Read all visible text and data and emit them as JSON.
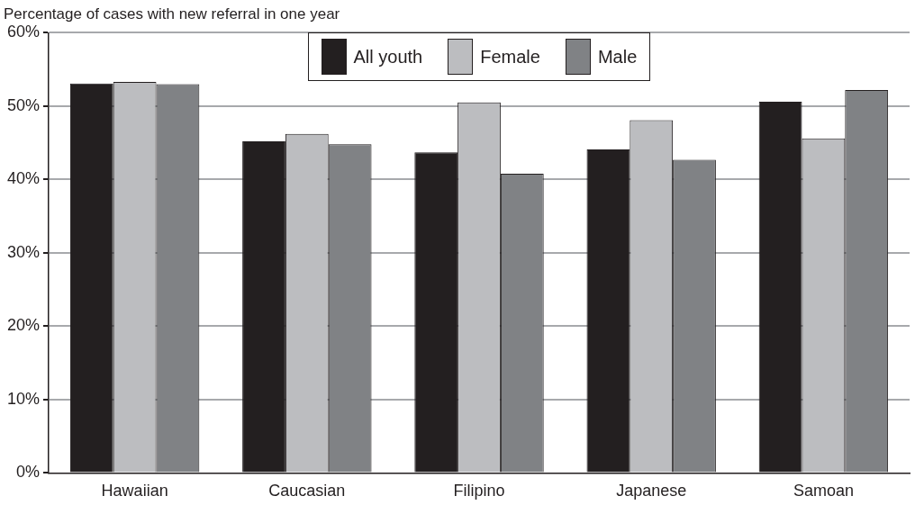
{
  "chart_data": {
    "type": "bar",
    "title": "Percentage of cases with new referral in one year",
    "categories": [
      "Hawaiian",
      "Caucasian",
      "Filipino",
      "Japanese",
      "Samoan"
    ],
    "series": [
      {
        "name": "All youth",
        "color": "#231f20",
        "values": [
          53.1,
          45.2,
          43.7,
          44.1,
          50.6
        ]
      },
      {
        "name": "Female",
        "color": "#bcbdc0",
        "values": [
          53.3,
          46.2,
          50.5,
          48.1,
          45.6
        ]
      },
      {
        "name": "Male",
        "color": "#808285",
        "values": [
          53.0,
          44.8,
          40.8,
          42.7,
          52.2
        ]
      }
    ],
    "ylim": [
      0,
      60
    ],
    "yticks": [
      {
        "value": 0,
        "label": "0%"
      },
      {
        "value": 10,
        "label": "10%"
      },
      {
        "value": 20,
        "label": "20%"
      },
      {
        "value": 30,
        "label": "30%"
      },
      {
        "value": 40,
        "label": "40%"
      },
      {
        "value": 50,
        "label": "50%"
      },
      {
        "value": 60,
        "label": "60%"
      }
    ],
    "grid": "y",
    "legend": "top"
  }
}
